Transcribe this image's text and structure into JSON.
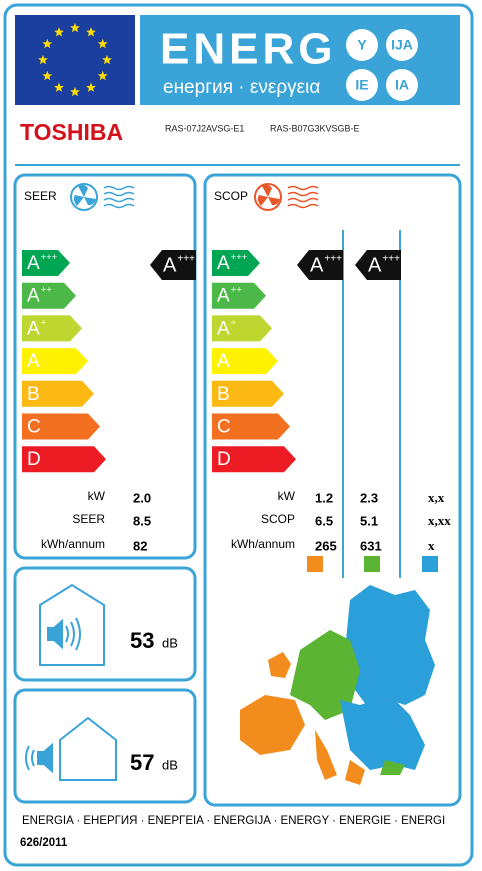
{
  "header": {
    "title": "ENERG",
    "subtitle": "енергия · ενεργεια",
    "badges": [
      "Y",
      "IJA",
      "IE",
      "IA"
    ]
  },
  "brand": "TOSHIBA",
  "models": [
    "RAS-07J2AVSG-E1",
    "RAS-B07G3KVSGB-E"
  ],
  "classes": [
    {
      "letter": "A",
      "sup": "+++"
    },
    {
      "letter": "A",
      "sup": "++"
    },
    {
      "letter": "A",
      "sup": "+"
    },
    {
      "letter": "A",
      "sup": ""
    },
    {
      "letter": "B",
      "sup": ""
    },
    {
      "letter": "C",
      "sup": ""
    },
    {
      "letter": "D",
      "sup": ""
    }
  ],
  "cooling": {
    "title": "SEER",
    "rating": {
      "letter": "A",
      "sup": "+++"
    },
    "rows": [
      {
        "label": "kW",
        "value": "2.0"
      },
      {
        "label": "SEER",
        "value": "8.5"
      },
      {
        "label": "kWh/annum",
        "value": "82"
      }
    ]
  },
  "heating": {
    "title": "SCOP",
    "ratings": [
      {
        "letter": "A",
        "sup": "+++"
      },
      {
        "letter": "A",
        "sup": "+++"
      }
    ],
    "rows": [
      {
        "label": "kW",
        "values": [
          "1.2",
          "2.3",
          "x,x"
        ]
      },
      {
        "label": "SCOP",
        "values": [
          "6.5",
          "5.1",
          "x,xx"
        ]
      },
      {
        "label": "kWh/annum",
        "values": [
          "265",
          "631",
          "x"
        ]
      }
    ]
  },
  "noise": [
    {
      "value": "53",
      "unit": "dB"
    },
    {
      "value": "57",
      "unit": "dB"
    }
  ],
  "footer": {
    "languages": "ENERGIA · ЕНЕРГИЯ · ΕΝΕΡΓΕΙΑ · ENERGIJA · ENERGY · ENERGIE · ENERGI",
    "regulation": "626/2011"
  }
}
